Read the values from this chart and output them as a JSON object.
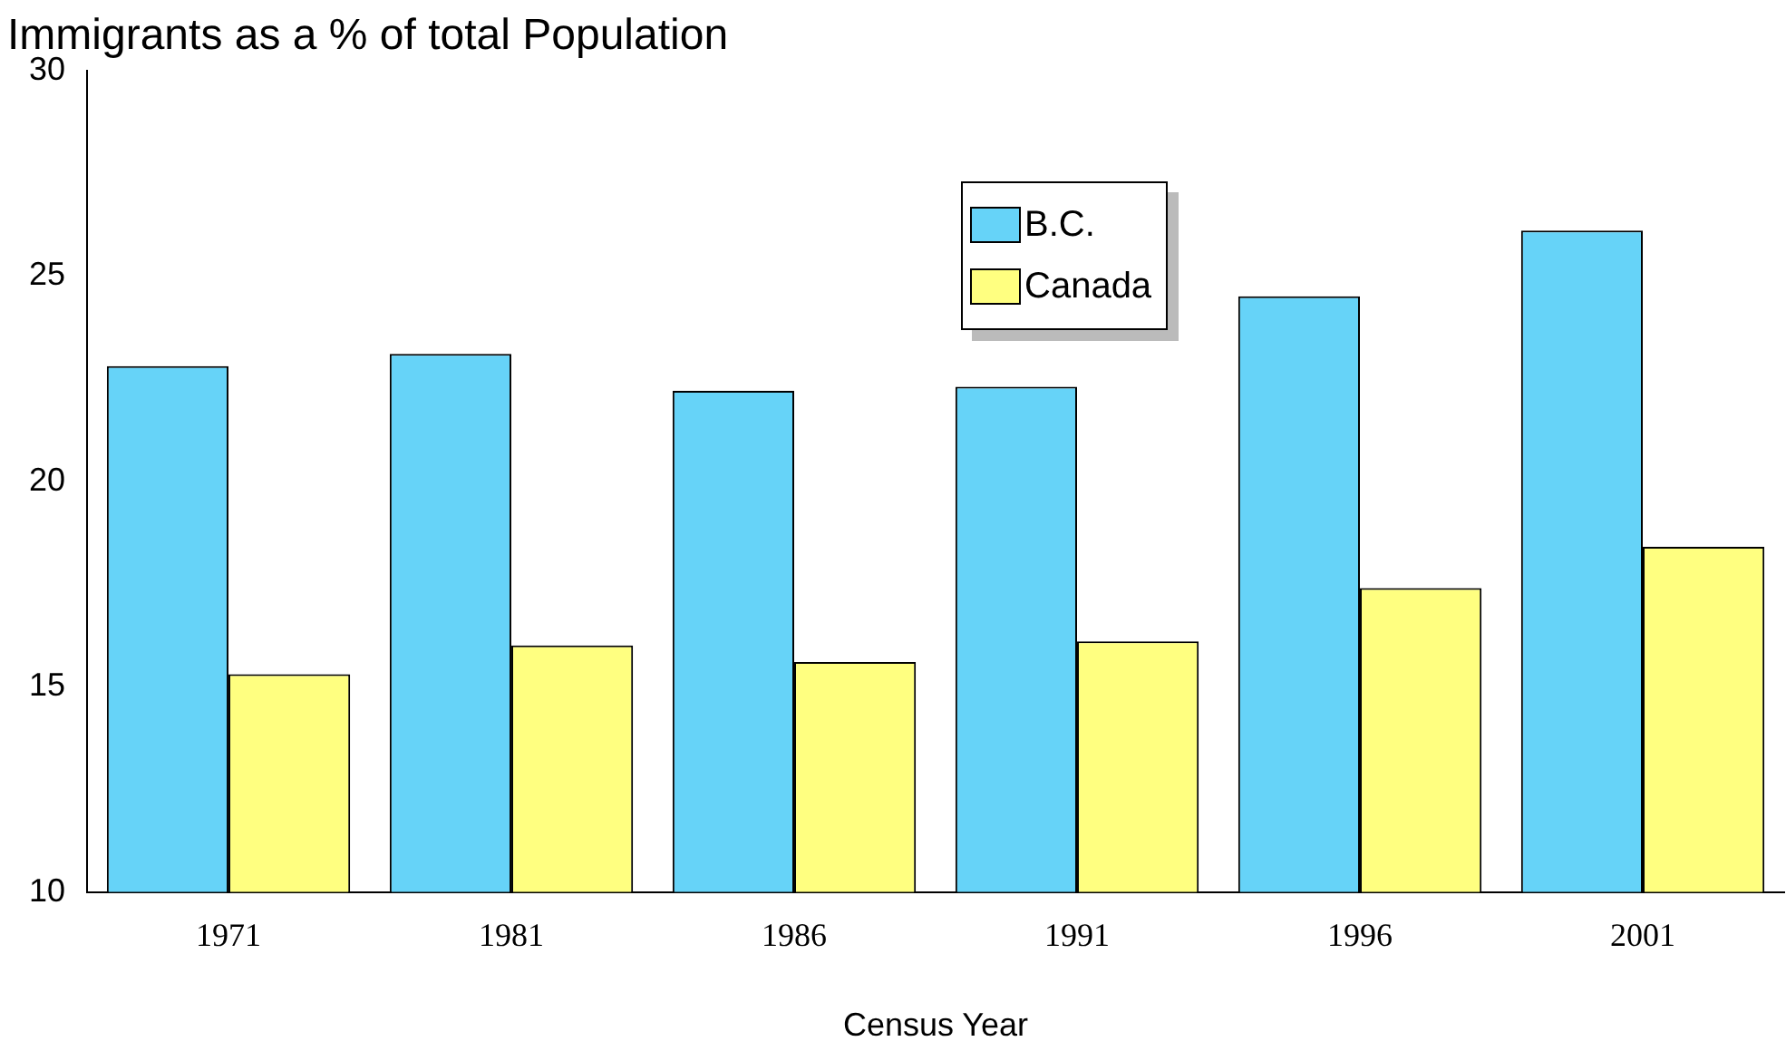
{
  "chart_data": {
    "type": "bar",
    "title": "Immigrants as a % of total Population",
    "xlabel": "Census Year",
    "categories": [
      "1971",
      "1981",
      "1986",
      "1991",
      "1996",
      "2001"
    ],
    "series": [
      {
        "name": "B.C.",
        "color": "#66d3f8",
        "values": [
          22.8,
          23.1,
          22.2,
          22.3,
          24.5,
          26.1
        ]
      },
      {
        "name": "Canada",
        "color": "#ffff80",
        "values": [
          15.3,
          16.0,
          15.6,
          16.1,
          17.4,
          18.4
        ]
      }
    ],
    "ylim": [
      10,
      30
    ],
    "yticks": [
      10,
      15,
      20,
      25,
      30
    ],
    "grid": false,
    "legend": "top right"
  }
}
